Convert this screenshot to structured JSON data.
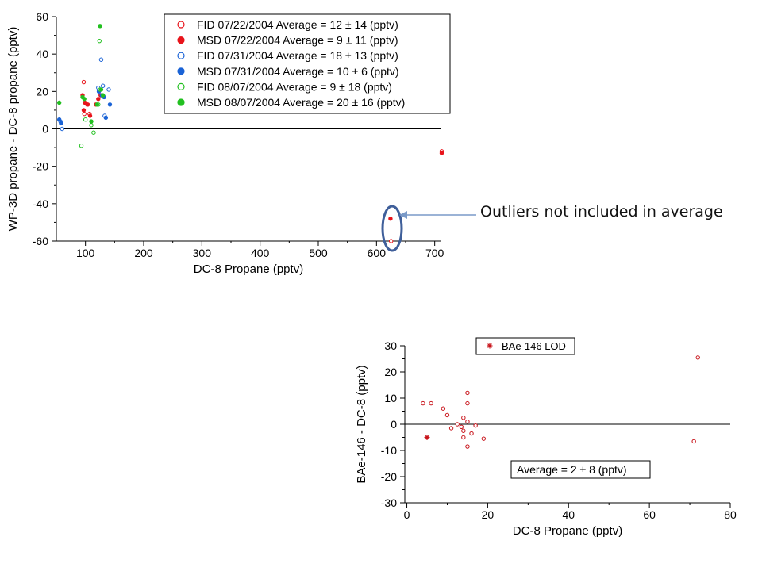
{
  "annotation": {
    "text": "Outliers not included in average"
  },
  "chart_data": [
    {
      "type": "scatter",
      "title": "",
      "xlabel": "DC-8 Propane (pptv)",
      "ylabel": "WP-3D propane  - DC-8 propane (pptv)",
      "xlim": [
        50,
        710
      ],
      "ylim": [
        -60,
        60
      ],
      "xticks": [
        100,
        200,
        300,
        400,
        500,
        600,
        700
      ],
      "yticks": [
        -60,
        -40,
        -20,
        0,
        20,
        40,
        60
      ],
      "zero_line": true,
      "grid": false,
      "legend_position": "top-right",
      "series": [
        {
          "name": "FID 07/22/2004 Average = 12 ± 14 (pptv)",
          "color": "#e8141b",
          "filled": false,
          "points": [
            [
              97,
              25
            ],
            [
              98,
              8
            ],
            [
              104,
              13
            ],
            [
              107,
              8
            ],
            [
              625,
              -60
            ],
            [
              712,
              -12
            ]
          ]
        },
        {
          "name": "MSD 07/22/2004 Average = 9 ± 11 (pptv)",
          "color": "#e8141b",
          "filled": true,
          "points": [
            [
              95,
              18
            ],
            [
              97,
              10
            ],
            [
              99,
              14
            ],
            [
              103,
              13
            ],
            [
              108,
              7
            ],
            [
              118,
              13
            ],
            [
              122,
              16
            ],
            [
              126,
              18
            ],
            [
              624,
              -48
            ],
            [
              712,
              -13
            ]
          ]
        },
        {
          "name": "FID 07/31/2004 Average = 18 ± 13 (pptv)",
          "color": "#1a63d6",
          "filled": false,
          "points": [
            [
              57,
              4
            ],
            [
              60,
              0
            ],
            [
              122,
              22
            ],
            [
              127,
              37
            ],
            [
              130,
              23
            ],
            [
              133,
              7
            ],
            [
              140,
              21
            ]
          ]
        },
        {
          "name": "MSD 07/31/2004 Average = 10 ± 6 (pptv)",
          "color": "#1a63d6",
          "filled": true,
          "points": [
            [
              55,
              5
            ],
            [
              58,
              3
            ],
            [
              123,
              20
            ],
            [
              128,
              18
            ],
            [
              132,
              17
            ],
            [
              135,
              6
            ],
            [
              142,
              13
            ]
          ]
        },
        {
          "name": "FID 08/07/2004 Average = 9 ± 18 (pptv)",
          "color": "#22c020",
          "filled": false,
          "points": [
            [
              93,
              -9
            ],
            [
              100,
              5
            ],
            [
              110,
              2
            ],
            [
              114,
              -2
            ],
            [
              122,
              13
            ],
            [
              124,
              47
            ],
            [
              125,
              21
            ]
          ]
        },
        {
          "name": "MSD 08/07/2004 Average = 20 ± 16 (pptv)",
          "color": "#22c020",
          "filled": true,
          "points": [
            [
              55,
              14
            ],
            [
              95,
              17
            ],
            [
              98,
              16
            ],
            [
              110,
              4
            ],
            [
              120,
              13
            ],
            [
              125,
              55
            ],
            [
              127,
              21
            ],
            [
              130,
              18
            ]
          ]
        }
      ]
    },
    {
      "type": "scatter",
      "title": "",
      "xlabel": "DC-8 Propane (pptv)",
      "ylabel": "BAe-146  - DC-8 (pptv)",
      "xlim": [
        -0.5,
        80
      ],
      "ylim": [
        -30,
        30
      ],
      "xticks": [
        0,
        20,
        40,
        60,
        80
      ],
      "yticks": [
        -30,
        -20,
        -10,
        0,
        10,
        20,
        30
      ],
      "zero_line": true,
      "grid": false,
      "legend_position": "top-center",
      "annotation": "Average = 2 ± 8 (pptv)",
      "series": [
        {
          "name": "",
          "color": "#c8141b",
          "marker": "circle-open",
          "points": [
            [
              4,
              8
            ],
            [
              6,
              8
            ],
            [
              9,
              6
            ],
            [
              10,
              3.5
            ],
            [
              11,
              -1.5
            ],
            [
              12.5,
              0
            ],
            [
              13.5,
              -1
            ],
            [
              14,
              2.5
            ],
            [
              14,
              -5
            ],
            [
              14,
              -2.5
            ],
            [
              15,
              1
            ],
            [
              15,
              8
            ],
            [
              15,
              12
            ],
            [
              15,
              -8.5
            ],
            [
              16,
              -3.5
            ],
            [
              17,
              -0.5
            ],
            [
              19,
              -5.5
            ],
            [
              71,
              -6.5
            ],
            [
              72,
              25.5
            ]
          ]
        },
        {
          "name": "BAe-146 LOD",
          "color": "#c8141b",
          "marker": "asterisk",
          "points": [
            [
              5,
              -5
            ]
          ]
        }
      ]
    }
  ]
}
